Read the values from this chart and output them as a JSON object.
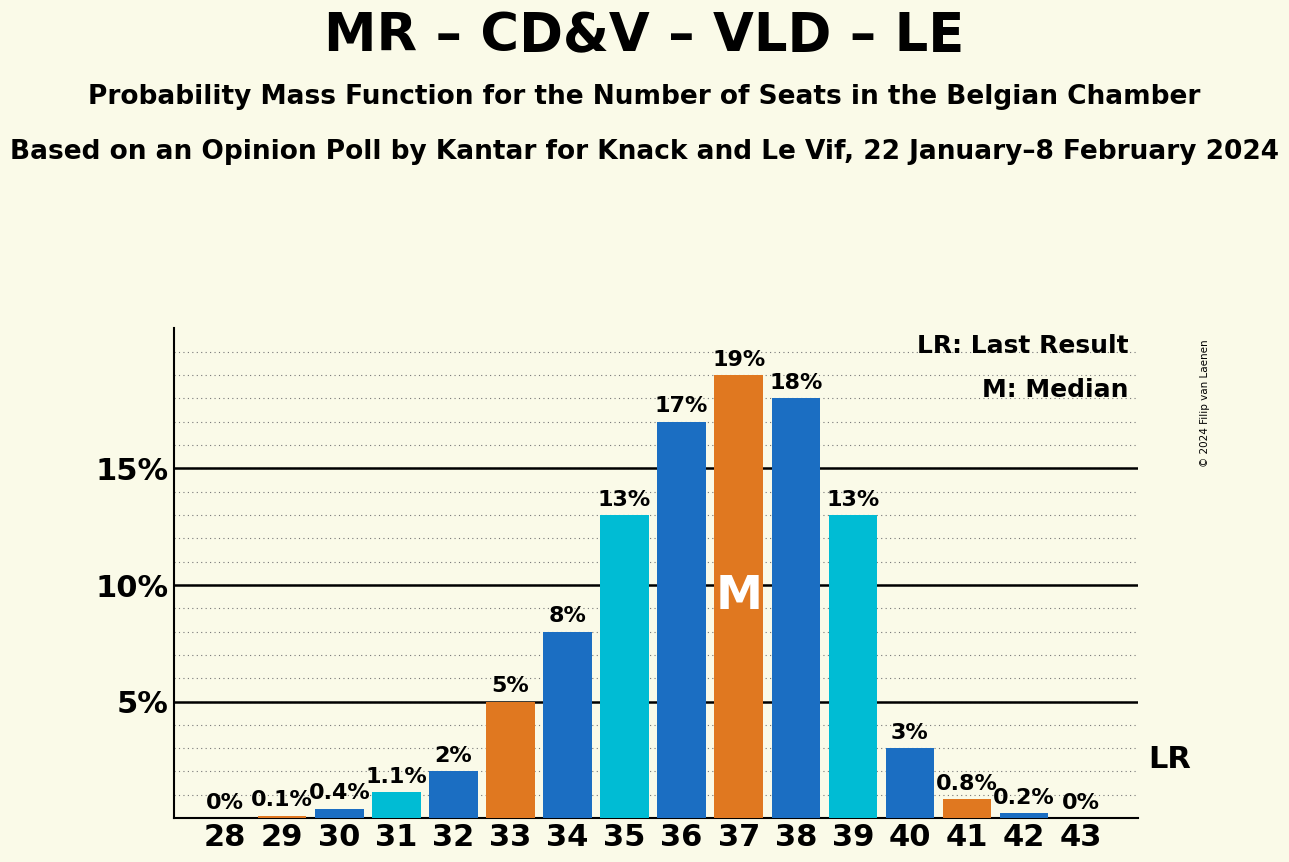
{
  "title": "MR – CD&V – VLD – LE",
  "subtitle1": "Probability Mass Function for the Number of Seats in the Belgian Chamber",
  "subtitle2": "Based on an Opinion Poll by Kantar for Knack and Le Vif, 22 January–8 February 2024",
  "copyright": "© 2024 Filip van Laenen",
  "seats": [
    28,
    29,
    30,
    31,
    32,
    33,
    34,
    35,
    36,
    37,
    38,
    39,
    40,
    41,
    42,
    43
  ],
  "probabilities": [
    0.0,
    0.1,
    0.4,
    1.1,
    2.0,
    5.0,
    8.0,
    13.0,
    17.0,
    19.0,
    18.0,
    13.0,
    3.0,
    0.8,
    0.2,
    0.0
  ],
  "bar_colors": [
    "#E07820",
    "#E07820",
    "#1B6EC2",
    "#00BCD4",
    "#1B6EC2",
    "#E07820",
    "#1B6EC2",
    "#00BCD4",
    "#1B6EC2",
    "#E07820",
    "#1B6EC2",
    "#00BCD4",
    "#1B6EC2",
    "#E07820",
    "#1B6EC2",
    "#1B6EC2"
  ],
  "median_seat": 37,
  "lr_seat": 41,
  "legend_lr": "LR: Last Result",
  "legend_m": "M: Median",
  "median_label": "M",
  "lr_label": "LR",
  "ylim": [
    0,
    21
  ],
  "ytick_values": [
    5,
    10,
    15
  ],
  "ytick_labels": [
    "5%",
    "10%",
    "15%"
  ],
  "background_color": "#FAFAE8",
  "title_fontsize": 38,
  "subtitle1_fontsize": 19,
  "subtitle2_fontsize": 19,
  "tick_fontsize": 22,
  "label_fontsize": 16
}
